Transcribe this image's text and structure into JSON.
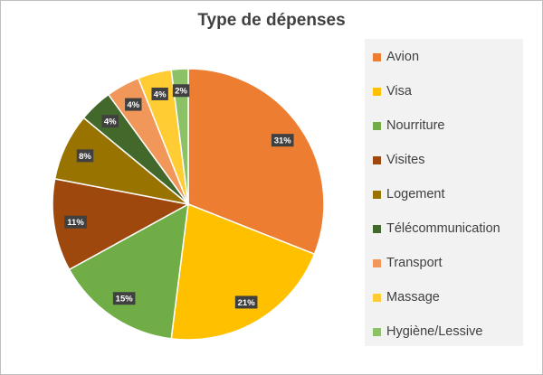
{
  "chart_data": {
    "type": "pie",
    "title": "Type de dépenses",
    "categories": [
      "Avion",
      "Visa",
      "Nourriture",
      "Visites",
      "Logement",
      "Télécommunication",
      "Transport",
      "Massage",
      "Hygiène/Lessive"
    ],
    "values": [
      31,
      21,
      15,
      11,
      8,
      4,
      4,
      4,
      2
    ],
    "data_labels": [
      "31%",
      "21%",
      "15%",
      "11%",
      "8%",
      "4%",
      "4%",
      "4%",
      "2%"
    ],
    "colors": [
      "#ED7D31",
      "#FFC000",
      "#70AD47",
      "#9E480E",
      "#997300",
      "#43682B",
      "#F1975A",
      "#FFCD33",
      "#8CC168"
    ],
    "legend_position": "right",
    "start_angle_deg": 0,
    "direction": "clockwise"
  }
}
